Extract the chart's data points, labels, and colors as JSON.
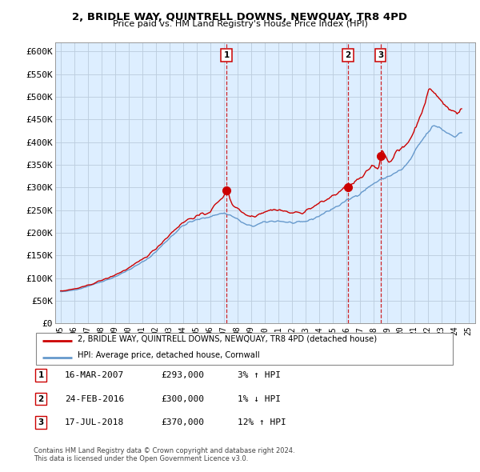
{
  "title": "2, BRIDLE WAY, QUINTRELL DOWNS, NEWQUAY, TR8 4PD",
  "subtitle": "Price paid vs. HM Land Registry's House Price Index (HPI)",
  "ylim": [
    0,
    620000
  ],
  "yticks": [
    0,
    50000,
    100000,
    150000,
    200000,
    250000,
    300000,
    350000,
    400000,
    450000,
    500000,
    550000,
    600000
  ],
  "ytick_labels": [
    "£0",
    "£50K",
    "£100K",
    "£150K",
    "£200K",
    "£250K",
    "£300K",
    "£350K",
    "£400K",
    "£450K",
    "£500K",
    "£550K",
    "£600K"
  ],
  "xlim_start": 1994.6,
  "xlim_end": 2025.5,
  "sale_dates": [
    2007.21,
    2016.15,
    2018.54
  ],
  "sale_labels": [
    "1",
    "2",
    "3"
  ],
  "sale_prices": [
    293000,
    300000,
    370000
  ],
  "sale_info": [
    {
      "label": "1",
      "date": "16-MAR-2007",
      "price": "£293,000",
      "pct": "3%",
      "dir": "↑"
    },
    {
      "label": "2",
      "date": "24-FEB-2016",
      "price": "£300,000",
      "pct": "1%",
      "dir": "↓"
    },
    {
      "label": "3",
      "date": "17-JUL-2018",
      "price": "£370,000",
      "pct": "12%",
      "dir": "↑"
    }
  ],
  "legend_line1": "2, BRIDLE WAY, QUINTRELL DOWNS, NEWQUAY, TR8 4PD (detached house)",
  "legend_line2": "HPI: Average price, detached house, Cornwall",
  "footer1": "Contains HM Land Registry data © Crown copyright and database right 2024.",
  "footer2": "This data is licensed under the Open Government Licence v3.0.",
  "line_color_red": "#cc0000",
  "line_color_blue": "#6699cc",
  "plot_bg_color": "#ddeeff",
  "background_color": "#ffffff",
  "grid_color": "#bbccdd"
}
